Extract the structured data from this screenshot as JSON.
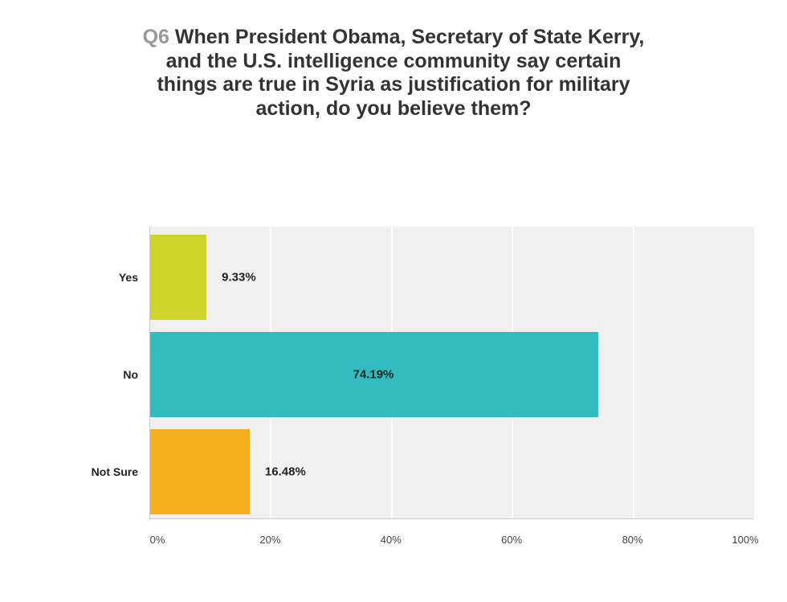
{
  "chart_data": {
    "type": "bar",
    "orientation": "horizontal",
    "title_prefix": "Q6",
    "title": "When President Obama, Secretary of State Kerry, and the U.S. intelligence community say certain things are true in Syria as justification for military action, do you believe them?",
    "categories": [
      "Yes",
      "No",
      "Not Sure"
    ],
    "values": [
      9.33,
      74.19,
      16.48
    ],
    "data_labels": [
      "9.33%",
      "74.19%",
      "16.48%"
    ],
    "colors": [
      "#cfd42a",
      "#32bcbf",
      "#f4ae1e"
    ],
    "xlim": [
      0,
      100
    ],
    "xticks": [
      0,
      20,
      40,
      60,
      80,
      100
    ],
    "xtick_labels": [
      "0%",
      "20%",
      "40%",
      "60%",
      "80%",
      "100%"
    ],
    "grid": true,
    "xlabel": "",
    "ylabel": ""
  }
}
